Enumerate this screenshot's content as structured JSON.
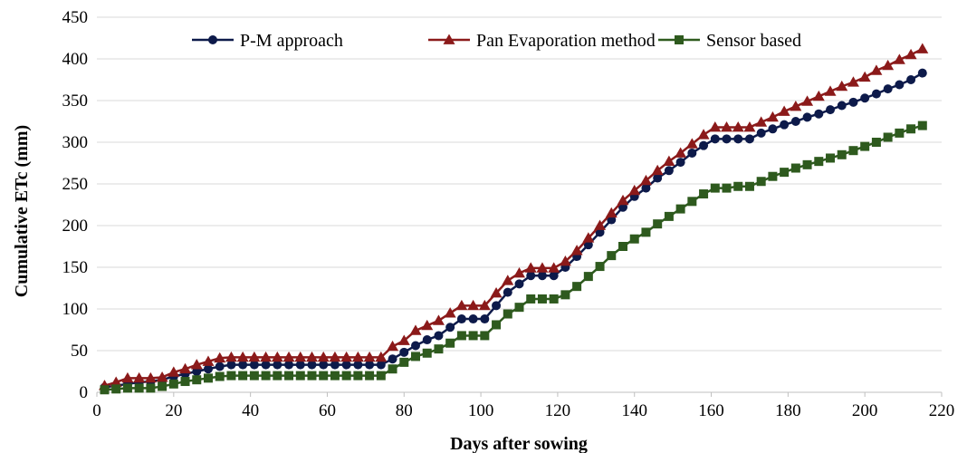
{
  "chart_data": {
    "type": "line",
    "title": "",
    "xlabel": "Days after sowing",
    "ylabel": "Cumulative ETc (mm)",
    "xlim": [
      0,
      220
    ],
    "ylim": [
      0,
      450
    ],
    "xticks": [
      0,
      20,
      40,
      60,
      80,
      100,
      120,
      140,
      160,
      180,
      200,
      220
    ],
    "yticks": [
      0,
      50,
      100,
      150,
      200,
      250,
      300,
      350,
      400,
      450
    ],
    "grid": "horizontal",
    "legend_position": "top",
    "colors": {
      "P-M approach": "#0d1a4a",
      "Pan Evaporation method": "#8b1a1a",
      "Sensor based": "#2e5a1e"
    },
    "x": [
      2,
      5,
      8,
      11,
      14,
      17,
      20,
      23,
      26,
      29,
      32,
      35,
      38,
      41,
      44,
      47,
      50,
      53,
      56,
      59,
      62,
      65,
      68,
      71,
      74,
      77,
      80,
      83,
      86,
      89,
      92,
      95,
      98,
      101,
      104,
      107,
      110,
      113,
      116,
      119,
      122,
      125,
      128,
      131,
      134,
      137,
      140,
      143,
      146,
      149,
      152,
      155,
      158,
      161,
      164,
      167,
      170,
      173,
      176,
      179,
      182,
      185,
      188,
      191,
      194,
      197,
      200,
      203,
      206,
      209,
      212,
      215
    ],
    "series": [
      {
        "name": "P-M approach",
        "marker": "circle",
        "values": [
          6,
          8,
          10,
          12,
          13,
          15,
          19,
          22,
          25,
          28,
          31,
          33,
          33,
          33,
          33,
          33,
          33,
          33,
          33,
          33,
          33,
          33,
          33,
          33,
          33,
          40,
          48,
          56,
          63,
          68,
          78,
          88,
          88,
          88,
          104,
          120,
          130,
          140,
          140,
          140,
          150,
          163,
          177,
          192,
          207,
          222,
          235,
          245,
          257,
          266,
          276,
          287,
          296,
          304,
          304,
          304,
          304,
          311,
          316,
          321,
          325,
          330,
          334,
          339,
          344,
          348,
          353,
          358,
          364,
          369,
          375,
          383
        ]
      },
      {
        "name": "Pan Evaporation method",
        "marker": "triangle",
        "values": [
          8,
          12,
          17,
          17,
          17,
          18,
          24,
          28,
          33,
          37,
          41,
          42,
          42,
          42,
          42,
          42,
          42,
          42,
          42,
          42,
          42,
          42,
          42,
          42,
          42,
          55,
          62,
          74,
          80,
          86,
          95,
          104,
          104,
          104,
          119,
          134,
          143,
          149,
          149,
          149,
          157,
          170,
          185,
          200,
          215,
          230,
          242,
          254,
          266,
          277,
          287,
          298,
          309,
          318,
          318,
          318,
          318,
          324,
          330,
          337,
          343,
          349,
          355,
          361,
          367,
          372,
          378,
          386,
          392,
          399,
          405,
          412
        ]
      },
      {
        "name": "Sensor based",
        "marker": "square",
        "values": [
          3,
          4,
          5,
          5,
          5,
          7,
          10,
          13,
          15,
          17,
          19,
          20,
          20,
          20,
          20,
          20,
          20,
          20,
          20,
          20,
          20,
          20,
          20,
          20,
          20,
          28,
          36,
          43,
          47,
          52,
          59,
          68,
          68,
          68,
          81,
          94,
          102,
          112,
          112,
          112,
          117,
          127,
          139,
          151,
          164,
          175,
          184,
          192,
          202,
          211,
          220,
          229,
          238,
          245,
          245,
          247,
          247,
          253,
          259,
          264,
          269,
          273,
          277,
          281,
          285,
          290,
          295,
          300,
          306,
          311,
          316,
          320
        ]
      }
    ]
  }
}
